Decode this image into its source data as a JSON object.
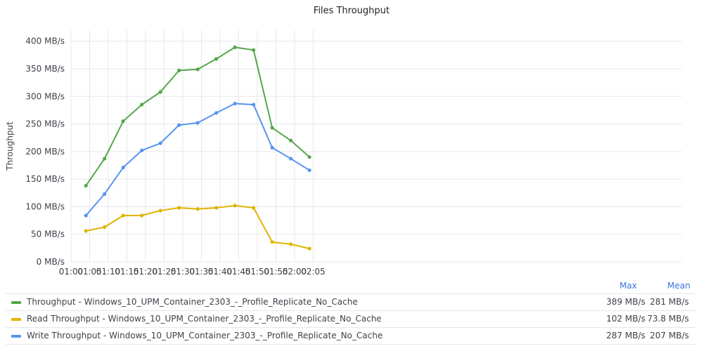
{
  "chart_data": {
    "type": "line",
    "title": "Files Throughput",
    "ylabel": "Throughput",
    "xlabel": "",
    "x_ticks": [
      "01:00",
      "01:05",
      "01:10",
      "01:15",
      "01:20",
      "01:25",
      "01:30",
      "01:35",
      "01:40",
      "01:45",
      "01:50",
      "01:55",
      "02:00",
      "02:05"
    ],
    "y_ticks": [
      "0 MB/s",
      "50 MB/s",
      "100 MB/s",
      "150 MB/s",
      "200 MB/s",
      "250 MB/s",
      "300 MB/s",
      "350 MB/s",
      "400 MB/s"
    ],
    "ylim": [
      0,
      420
    ],
    "x": [
      "01:04",
      "01:09",
      "01:14",
      "01:19",
      "01:24",
      "01:29",
      "01:34",
      "01:39",
      "01:44",
      "01:49",
      "01:54",
      "01:59",
      "02:04"
    ],
    "grid": true,
    "legend_placement": "bottom",
    "legend_columns": [
      "Max",
      "Mean"
    ],
    "series": [
      {
        "name": "Throughput - Windows_10_UPM_Container_2303_-_Profile_Replicate_No_Cache",
        "color": "#56a64b",
        "values": [
          138,
          187,
          255,
          285,
          308,
          347,
          349,
          368,
          389,
          384,
          243,
          220,
          190
        ],
        "max": "389 MB/s",
        "mean": "281 MB/s"
      },
      {
        "name": "Read Throughput - Windows_10_UPM_Container_2303_-_Profile_Replicate_No_Cache",
        "color": "#e0b400",
        "values": [
          56,
          63,
          84,
          84,
          93,
          98,
          96,
          98,
          102,
          98,
          36,
          32,
          24
        ],
        "max": "102 MB/s",
        "mean": "73.8 MB/s"
      },
      {
        "name": "Write Throughput - Windows_10_UPM_Container_2303_-_Profile_Replicate_No_Cache",
        "color": "#5794f2",
        "values": [
          84,
          123,
          171,
          202,
          215,
          248,
          252,
          270,
          287,
          285,
          207,
          187,
          166
        ],
        "max": "287 MB/s",
        "mean": "207 MB/s"
      }
    ]
  }
}
